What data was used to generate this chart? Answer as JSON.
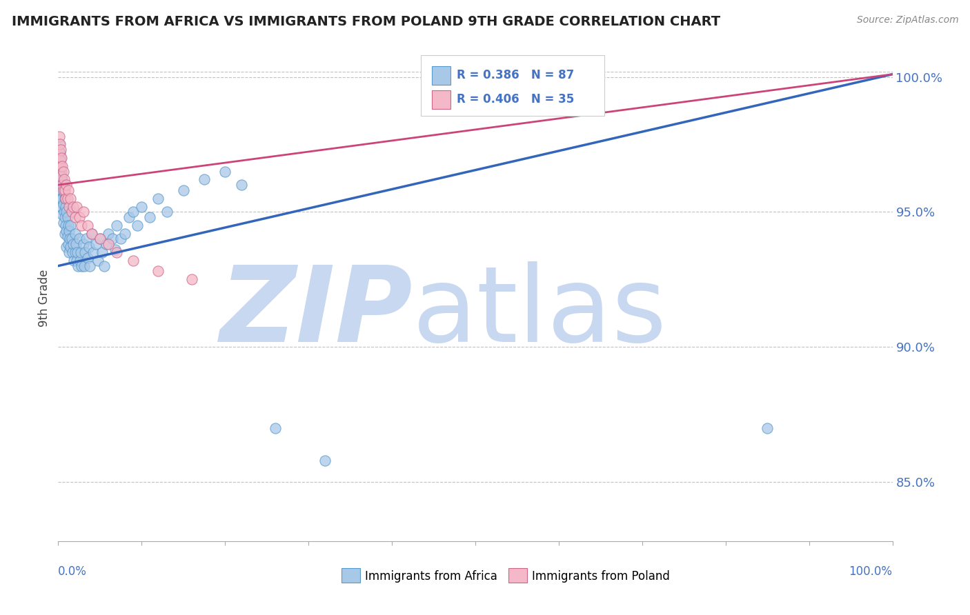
{
  "title": "IMMIGRANTS FROM AFRICA VS IMMIGRANTS FROM POLAND 9TH GRADE CORRELATION CHART",
  "source": "Source: ZipAtlas.com",
  "ylabel": "9th Grade",
  "xlim": [
    0.0,
    1.0
  ],
  "ylim": [
    0.828,
    1.008
  ],
  "yticks": [
    0.85,
    0.9,
    0.95,
    1.0
  ],
  "ytick_labels": [
    "85.0%",
    "90.0%",
    "95.0%",
    "100.0%"
  ],
  "legend_blue_label": "R = 0.386   N = 87",
  "legend_pink_label": "R = 0.406   N = 35",
  "blue_color": "#a8c8e8",
  "pink_color": "#f4b8c8",
  "blue_edge_color": "#5599cc",
  "pink_edge_color": "#cc6688",
  "blue_line_color": "#3366bb",
  "pink_line_color": "#cc4477",
  "title_color": "#222222",
  "axis_label_color": "#4472c4",
  "grid_color": "#bbbbbb",
  "watermark_zip_color": "#c8d8f0",
  "watermark_atlas_color": "#c8d8f0",
  "background_color": "#ffffff",
  "blue_line_x0": 0.0,
  "blue_line_y0": 0.93,
  "blue_line_x1": 1.0,
  "blue_line_y1": 1.001,
  "pink_line_x0": 0.0,
  "pink_line_y0": 0.96,
  "pink_line_x1": 1.0,
  "pink_line_y1": 1.001,
  "blue_scatter_x": [
    0.001,
    0.001,
    0.001,
    0.002,
    0.002,
    0.002,
    0.002,
    0.003,
    0.003,
    0.003,
    0.004,
    0.004,
    0.004,
    0.005,
    0.005,
    0.005,
    0.006,
    0.006,
    0.006,
    0.007,
    0.007,
    0.008,
    0.008,
    0.008,
    0.009,
    0.009,
    0.01,
    0.01,
    0.01,
    0.011,
    0.011,
    0.012,
    0.012,
    0.013,
    0.013,
    0.014,
    0.015,
    0.015,
    0.016,
    0.017,
    0.018,
    0.019,
    0.02,
    0.02,
    0.021,
    0.022,
    0.023,
    0.024,
    0.025,
    0.026,
    0.027,
    0.028,
    0.03,
    0.031,
    0.032,
    0.034,
    0.035,
    0.037,
    0.038,
    0.04,
    0.042,
    0.045,
    0.048,
    0.05,
    0.053,
    0.055,
    0.058,
    0.06,
    0.065,
    0.068,
    0.07,
    0.075,
    0.08,
    0.085,
    0.09,
    0.095,
    0.1,
    0.11,
    0.12,
    0.13,
    0.15,
    0.175,
    0.2,
    0.22,
    0.26,
    0.32,
    0.85
  ],
  "blue_scatter_y": [
    0.975,
    0.968,
    0.963,
    0.972,
    0.966,
    0.96,
    0.955,
    0.97,
    0.963,
    0.958,
    0.965,
    0.958,
    0.952,
    0.962,
    0.955,
    0.949,
    0.96,
    0.953,
    0.946,
    0.957,
    0.95,
    0.955,
    0.948,
    0.942,
    0.952,
    0.945,
    0.95,
    0.943,
    0.937,
    0.948,
    0.941,
    0.945,
    0.938,
    0.943,
    0.935,
    0.94,
    0.945,
    0.937,
    0.94,
    0.935,
    0.938,
    0.932,
    0.942,
    0.935,
    0.938,
    0.932,
    0.935,
    0.93,
    0.94,
    0.932,
    0.935,
    0.93,
    0.938,
    0.93,
    0.935,
    0.94,
    0.933,
    0.937,
    0.93,
    0.942,
    0.935,
    0.938,
    0.932,
    0.94,
    0.935,
    0.93,
    0.938,
    0.942,
    0.94,
    0.936,
    0.945,
    0.94,
    0.942,
    0.948,
    0.95,
    0.945,
    0.952,
    0.948,
    0.955,
    0.95,
    0.958,
    0.962,
    0.965,
    0.96,
    0.87,
    0.858,
    0.87
  ],
  "pink_scatter_x": [
    0.001,
    0.001,
    0.002,
    0.002,
    0.003,
    0.003,
    0.004,
    0.004,
    0.005,
    0.005,
    0.006,
    0.006,
    0.007,
    0.008,
    0.009,
    0.01,
    0.011,
    0.012,
    0.013,
    0.015,
    0.016,
    0.018,
    0.02,
    0.022,
    0.025,
    0.028,
    0.03,
    0.035,
    0.04,
    0.05,
    0.06,
    0.07,
    0.09,
    0.12,
    0.16
  ],
  "pink_scatter_y": [
    0.978,
    0.972,
    0.975,
    0.969,
    0.973,
    0.967,
    0.97,
    0.963,
    0.967,
    0.96,
    0.965,
    0.958,
    0.962,
    0.958,
    0.955,
    0.96,
    0.955,
    0.958,
    0.952,
    0.955,
    0.95,
    0.952,
    0.948,
    0.952,
    0.948,
    0.945,
    0.95,
    0.945,
    0.942,
    0.94,
    0.938,
    0.935,
    0.932,
    0.928,
    0.925
  ],
  "xtick_count": 10
}
